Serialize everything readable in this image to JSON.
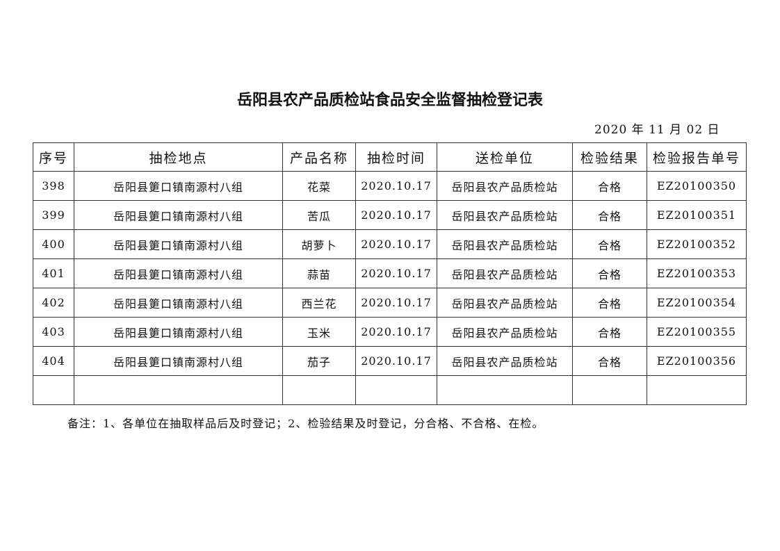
{
  "title": "岳阳县农产品质检站食品安全监督抽检登记表",
  "date": "2020 年 11 月 02 日",
  "table": {
    "headers": [
      "序号",
      "抽检地点",
      "产品名称",
      "抽检时间",
      "送检单位",
      "检验结果",
      "检验报告单号"
    ],
    "rows": [
      [
        "398",
        "岳阳县筻口镇南源村八组",
        "花菜",
        "2020.10.17",
        "岳阳县农产品质检站",
        "合格",
        "EZ20100350"
      ],
      [
        "399",
        "岳阳县筻口镇南源村八组",
        "苦瓜",
        "2020.10.17",
        "岳阳县农产品质检站",
        "合格",
        "EZ20100351"
      ],
      [
        "400",
        "岳阳县筻口镇南源村八组",
        "胡萝卜",
        "2020.10.17",
        "岳阳县农产品质检站",
        "合格",
        "EZ20100352"
      ],
      [
        "401",
        "岳阳县筻口镇南源村八组",
        "蒜苗",
        "2020.10.17",
        "岳阳县农产品质检站",
        "合格",
        "EZ20100353"
      ],
      [
        "402",
        "岳阳县筻口镇南源村八组",
        "西兰花",
        "2020.10.17",
        "岳阳县农产品质检站",
        "合格",
        "EZ20100354"
      ],
      [
        "403",
        "岳阳县筻口镇南源村八组",
        "玉米",
        "2020.10.17",
        "岳阳县农产品质检站",
        "合格",
        "EZ20100355"
      ],
      [
        "404",
        "岳阳县筻口镇南源村八组",
        "茄子",
        "2020.10.17",
        "岳阳县农产品质检站",
        "合格",
        "EZ20100356"
      ],
      [
        "",
        "",
        "",
        "",
        "",
        "",
        ""
      ]
    ]
  },
  "note": "备注：1、各单位在抽取样品后及时登记；2、检验结果及时登记，分合格、不合格、在检。"
}
